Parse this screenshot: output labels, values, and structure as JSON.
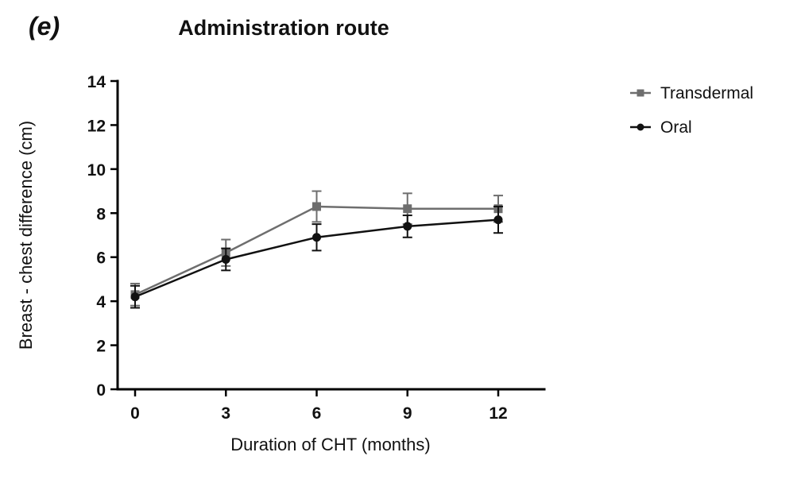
{
  "panel_label": "(e)",
  "colors": {
    "axis": "#000000",
    "transdermal": "#6e6e6e",
    "oral": "#111111",
    "background": "#ffffff"
  },
  "chart_data": {
    "type": "line",
    "title": "Administration route",
    "xlabel": "Duration of CHT (months)",
    "ylabel": "Breast - chest difference (cm)",
    "x": [
      0,
      3,
      6,
      9,
      12
    ],
    "ylim": [
      0,
      14
    ],
    "ytick_step": 2,
    "grid": false,
    "legend_position": "right",
    "series": [
      {
        "name": "Transdermal",
        "marker": "square",
        "color": "#6e6e6e",
        "values": [
          4.3,
          6.2,
          8.3,
          8.2,
          8.2
        ],
        "errors": [
          0.5,
          0.6,
          0.7,
          0.7,
          0.6
        ]
      },
      {
        "name": "Oral",
        "marker": "circle",
        "color": "#111111",
        "values": [
          4.2,
          5.9,
          6.9,
          7.4,
          7.7
        ],
        "errors": [
          0.5,
          0.5,
          0.6,
          0.5,
          0.6
        ]
      }
    ]
  }
}
